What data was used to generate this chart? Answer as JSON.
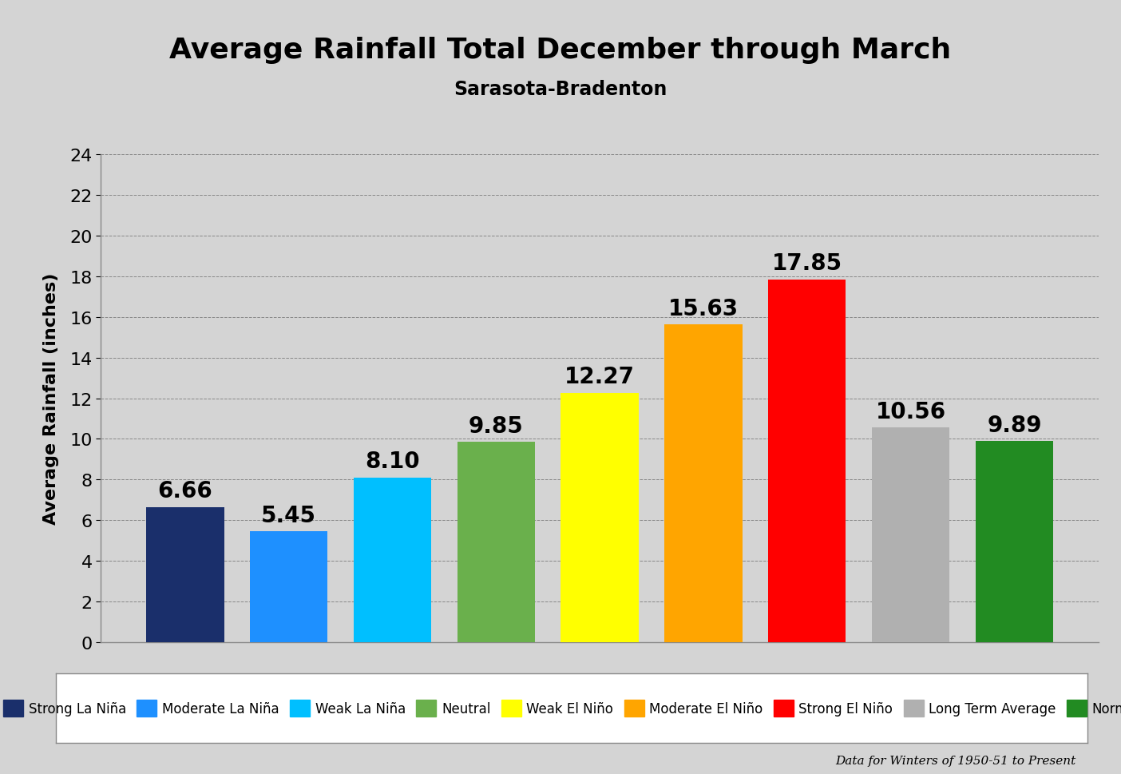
{
  "title": "Average Rainfall Total December through March",
  "subtitle": "Sarasota-Bradenton",
  "ylabel": "Average Rainfall (inches)",
  "categories": [
    "Strong La Niña",
    "Moderate La Niña",
    "Weak La Niña",
    "Neutral",
    "Weak El Niño",
    "Moderate El Niño",
    "Strong El Niño",
    "Long Term Average",
    "Normal"
  ],
  "values": [
    6.66,
    5.45,
    8.1,
    9.85,
    12.27,
    15.63,
    17.85,
    10.56,
    9.89
  ],
  "colors": [
    "#1a2f6b",
    "#1e90ff",
    "#00bfff",
    "#6ab04c",
    "#ffff00",
    "#ffa500",
    "#ff0000",
    "#b0b0b0",
    "#228b22"
  ],
  "ylim": [
    0,
    24
  ],
  "yticks": [
    0,
    2,
    4,
    6,
    8,
    10,
    12,
    14,
    16,
    18,
    20,
    22,
    24
  ],
  "annotation_text": "Data for Winters of 1950-51 to Present",
  "fig_bg_color": "#d4d4d4",
  "plot_bg_color": "#d4d4d4",
  "title_fontsize": 26,
  "subtitle_fontsize": 17,
  "ylabel_fontsize": 16,
  "bar_label_fontsize": 20,
  "legend_fontsize": 12,
  "ytick_fontsize": 16
}
